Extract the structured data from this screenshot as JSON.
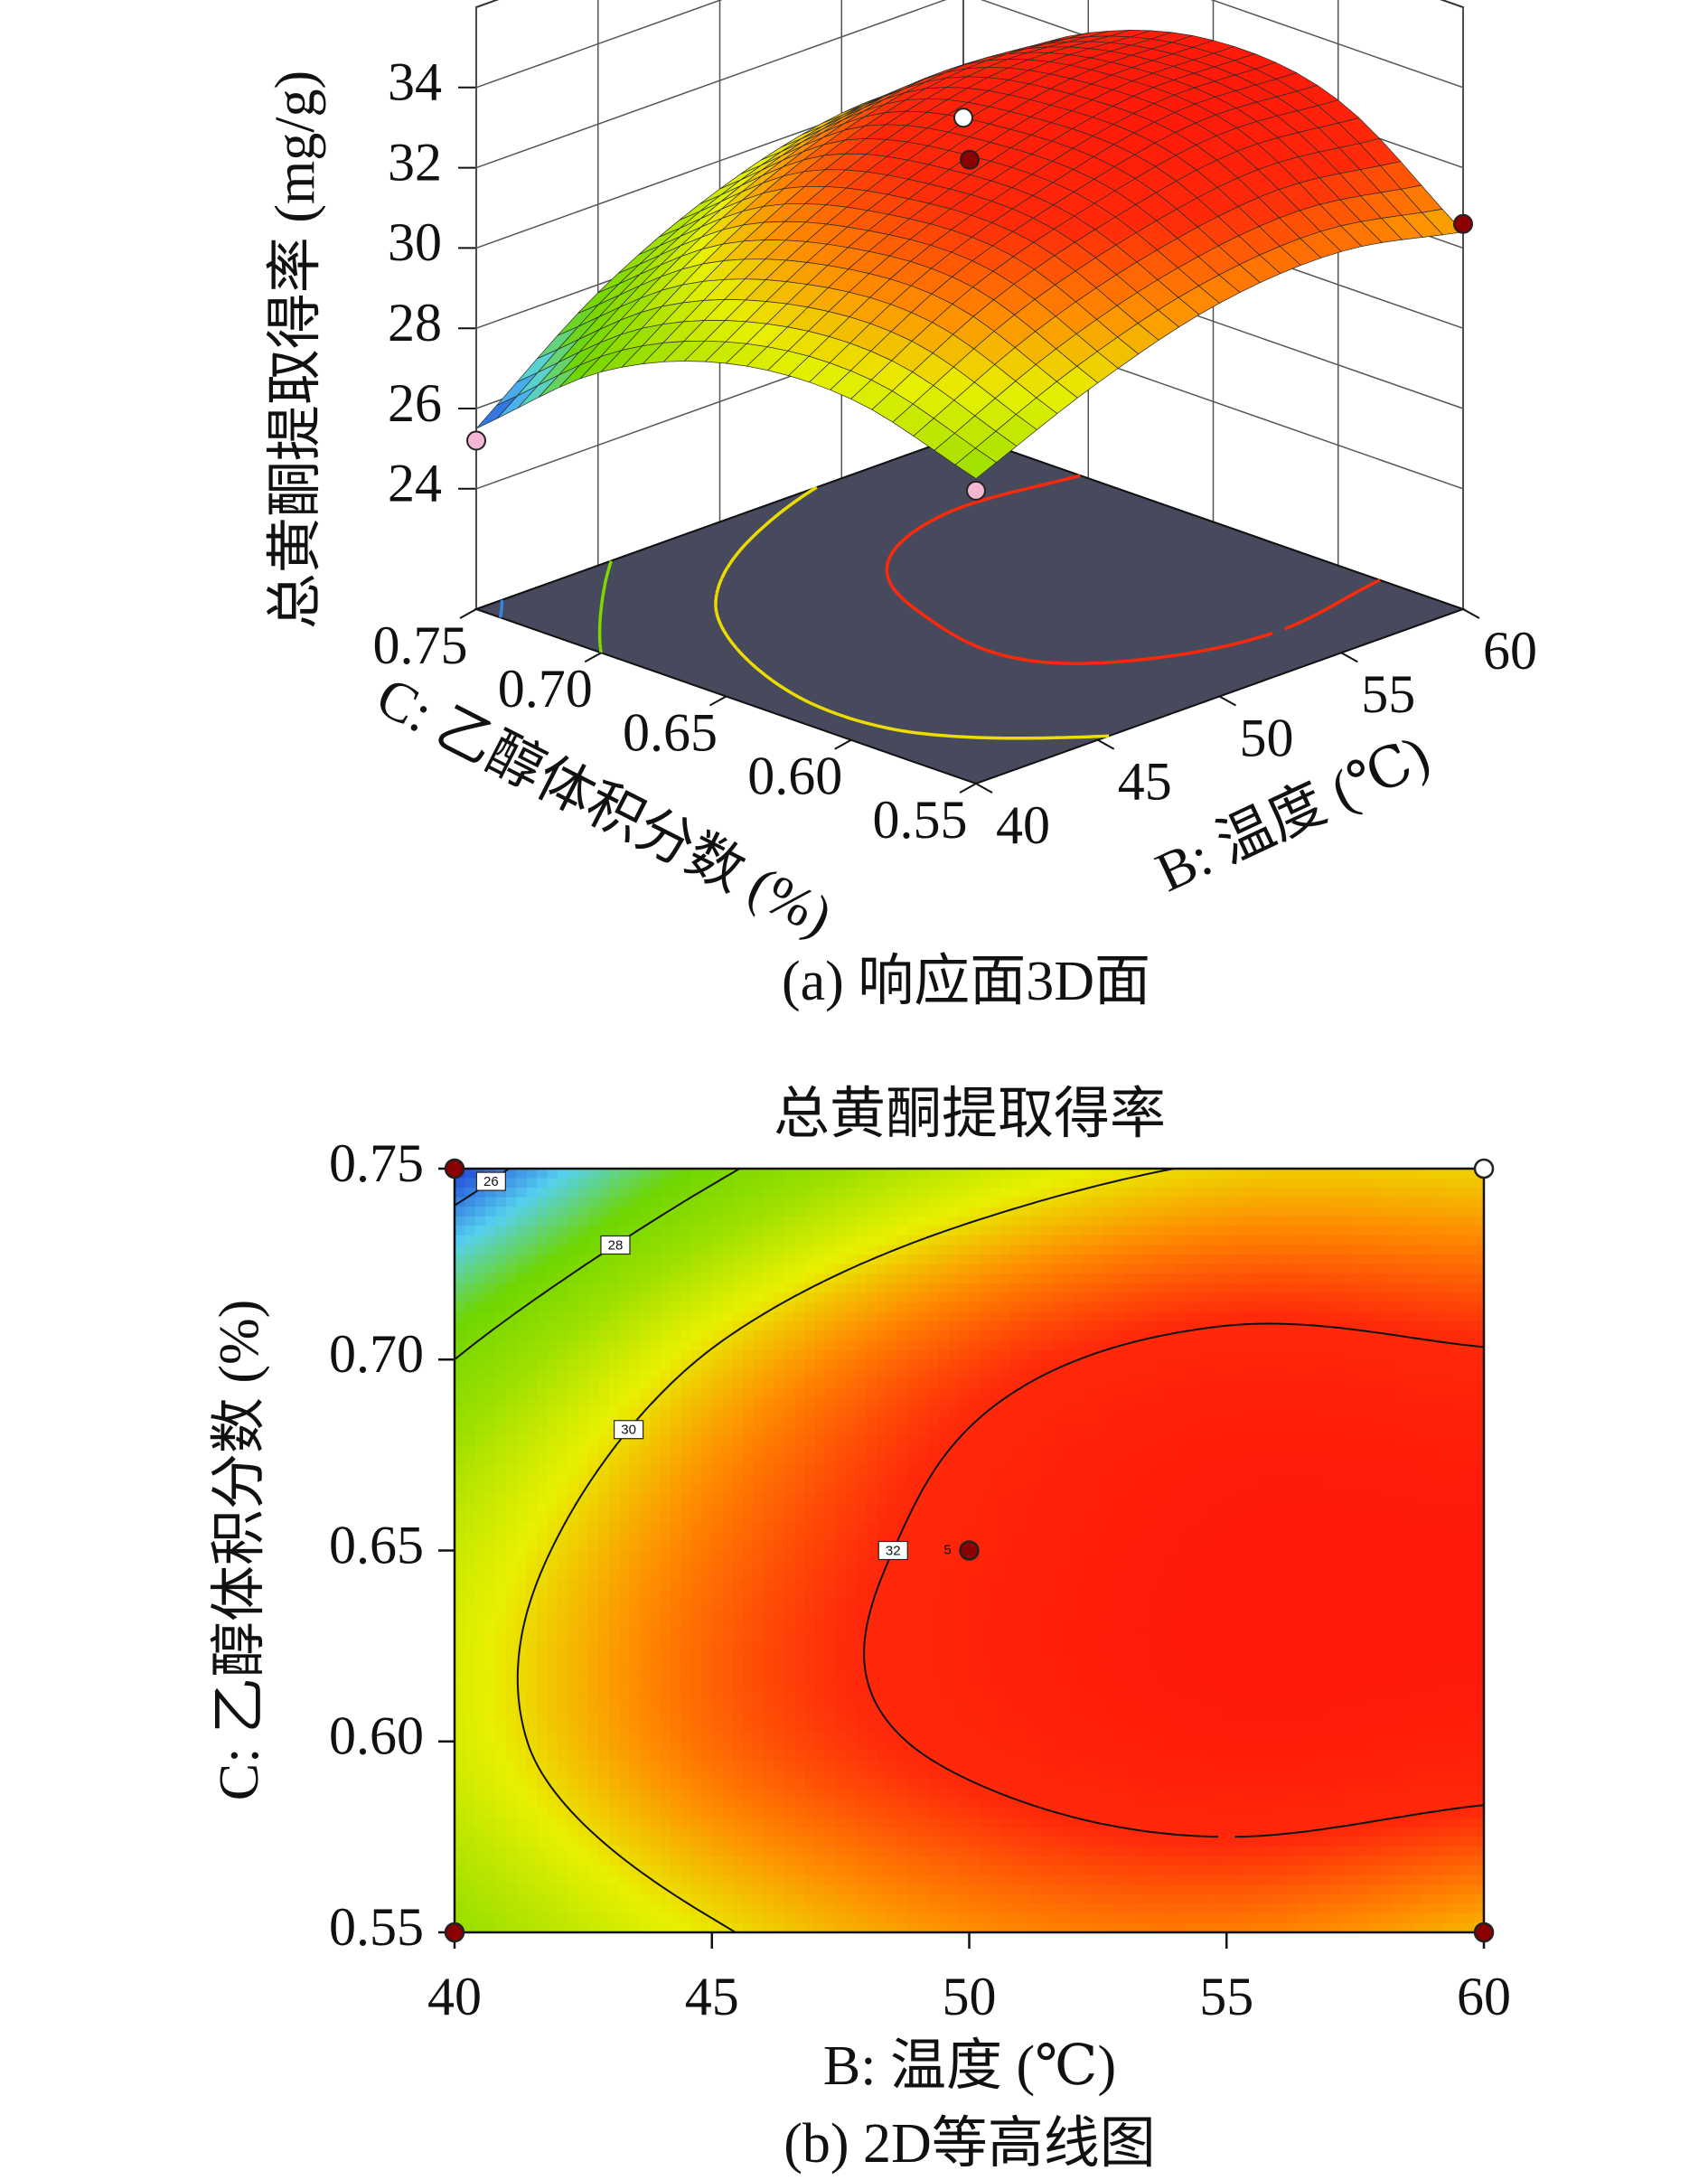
{
  "chart_data": [
    {
      "type": "surface3d",
      "caption": "(a) 响应面3D面",
      "xlabel": "B: 温度 (℃)",
      "ylabel": "C: 乙醇体积分数 (%)",
      "zlabel": "总黄酮提取得率 (mg/g)",
      "x": [
        40,
        45,
        50,
        55,
        60
      ],
      "y": [
        0.55,
        0.6,
        0.65,
        0.7,
        0.75
      ],
      "z": [
        [
          28.6,
          29.9,
          30.8,
          31.0,
          30.4
        ],
        [
          29.5,
          31.2,
          32.2,
          32.8,
          32.6
        ],
        [
          29.3,
          31.1,
          32.3,
          33.0,
          33.0
        ],
        [
          28.0,
          30.1,
          31.6,
          32.3,
          32.1
        ],
        [
          25.5,
          27.8,
          29.3,
          30.1,
          30.1
        ]
      ],
      "xlim": [
        40,
        60
      ],
      "ylim": [
        0.55,
        0.75
      ],
      "zlim": [
        21,
        36
      ],
      "xticks": [
        40,
        45,
        50,
        55,
        60
      ],
      "yticks": [
        0.55,
        {
          "value": 0.6,
          "label": "0.60"
        },
        0.65,
        {
          "value": 0.7,
          "label": "0.70"
        },
        0.75
      ],
      "zticks": [
        24,
        26,
        28,
        30,
        32,
        34
      ],
      "floor_contours": [
        26,
        28,
        30,
        32
      ],
      "colormap": [
        "#1f3fd6",
        "#55d0f0",
        "#6fd600",
        "#9ee000",
        "#e8f000",
        "#ff8a00",
        "#ff2a0a",
        "#ff1a0a"
      ],
      "points": [
        {
          "x": 40,
          "y": 0.75,
          "z": 25.2,
          "color": "#f4b6d2"
        },
        {
          "x": 40,
          "y": 0.55,
          "z": 28.3,
          "color": "#f4b6d2"
        },
        {
          "x": 60,
          "y": 0.55,
          "z": 30.6,
          "color": "#8b0000"
        },
        {
          "x": 60,
          "y": 0.75,
          "z": 28.9,
          "color": "#ffffff"
        },
        {
          "x": 50,
          "y": 0.65,
          "z": 32.2,
          "color": "#8b0000"
        }
      ]
    },
    {
      "type": "contour",
      "title": "总黄酮提取得率",
      "caption": "(b) 2D等高线图",
      "xlabel": "B: 温度 (℃)",
      "ylabel": "C: 乙醇体积分数 (%)",
      "x": [
        40,
        45,
        50,
        55,
        60
      ],
      "y": [
        0.55,
        0.6,
        0.65,
        0.7,
        0.75
      ],
      "z": [
        [
          28.6,
          29.9,
          30.8,
          31.0,
          30.4
        ],
        [
          29.5,
          31.2,
          32.2,
          32.8,
          32.6
        ],
        [
          29.3,
          31.1,
          32.3,
          33.0,
          33.0
        ],
        [
          28.0,
          30.1,
          31.6,
          32.3,
          32.1
        ],
        [
          25.5,
          27.8,
          29.3,
          30.1,
          30.1
        ]
      ],
      "xlim": [
        40,
        60
      ],
      "ylim": [
        0.55,
        0.75
      ],
      "xticks": [
        40,
        45,
        50,
        55,
        60
      ],
      "yticks": [
        0.55,
        {
          "value": 0.6,
          "label": "0.60"
        },
        0.65,
        {
          "value": 0.7,
          "label": "0.70"
        },
        0.75
      ],
      "contour_levels": [
        26,
        28,
        30,
        32
      ],
      "colormap": [
        "#1f3fd6",
        "#55d0f0",
        "#6fd600",
        "#9ee000",
        "#e8f000",
        "#ff8a00",
        "#ff2a0a",
        "#ff1a0a"
      ],
      "points": [
        {
          "x": 40,
          "y": 0.75,
          "color": "#8b0000"
        },
        {
          "x": 60,
          "y": 0.75,
          "color": "#ffffff"
        },
        {
          "x": 50,
          "y": 0.65,
          "color": "#8b0000",
          "label": "5"
        },
        {
          "x": 40,
          "y": 0.55,
          "color": "#8b0000"
        },
        {
          "x": 60,
          "y": 0.55,
          "color": "#8b0000"
        }
      ]
    }
  ]
}
